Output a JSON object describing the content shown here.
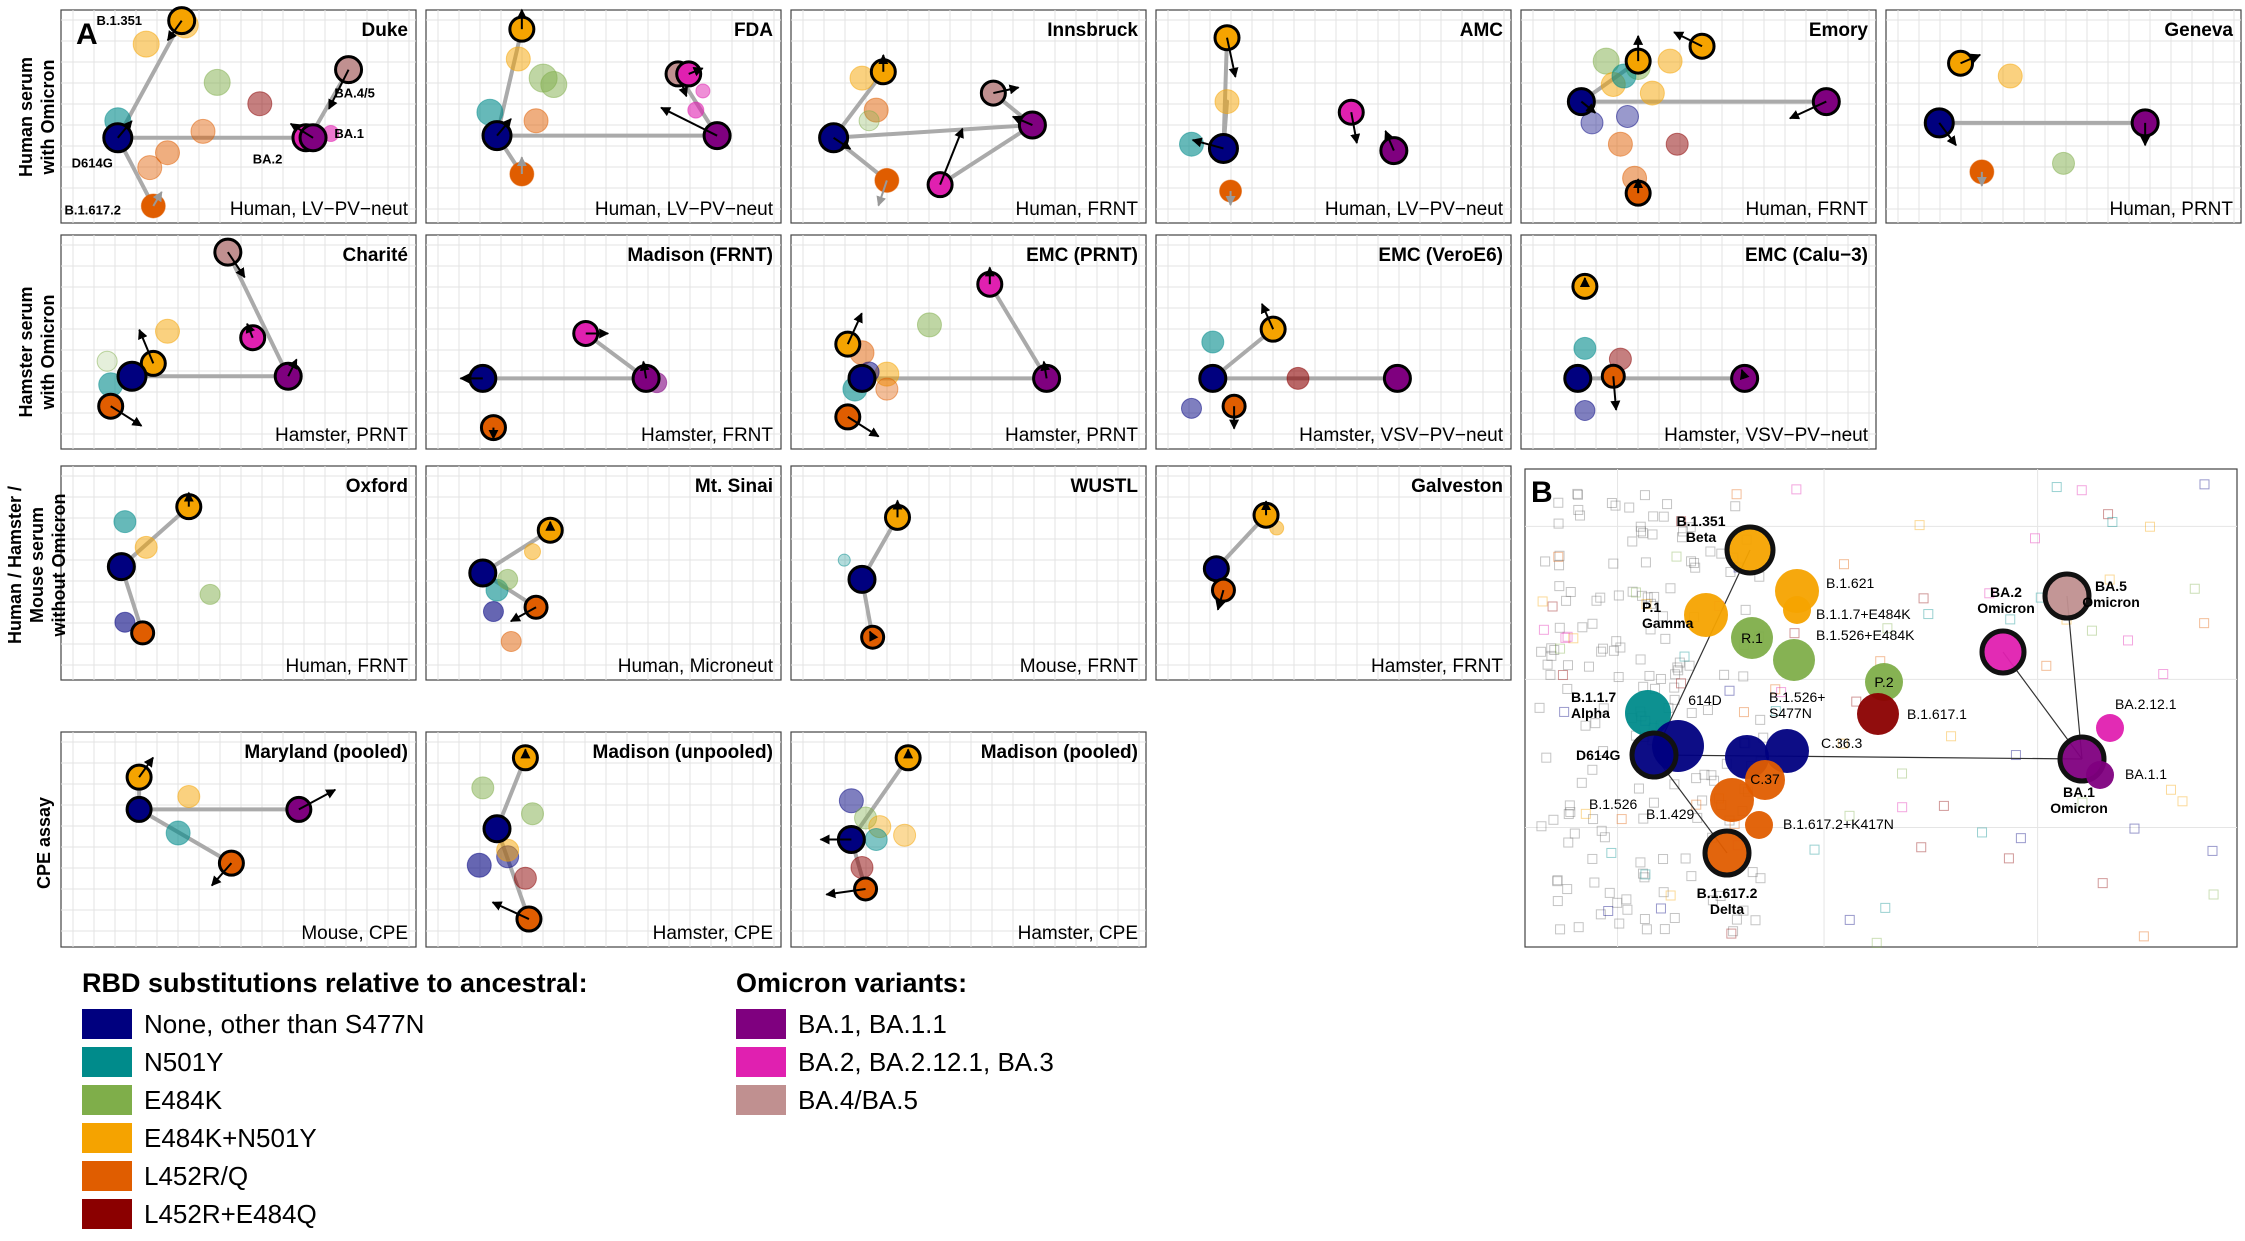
{
  "figure": {
    "panel_letter_a": "A",
    "panel_letter_b": "B",
    "row_labels": [
      "Human serum\nwith Omicron",
      "Hamster serum\nwith Omicron",
      "Human / Hamster /\nMouse serum\nwithout Omicron",
      "CPE assay"
    ]
  },
  "colors": {
    "none": "#00007f",
    "n501y": "#008b8b",
    "e484k": "#7fae4a",
    "e484k_n501y": "#f5a300",
    "l452rq": "#e05d00",
    "l452r_e484q": "#8b0000",
    "ba1": "#7f007f",
    "ba2": "#e020b0",
    "ba45": "#c09090"
  },
  "panels": [
    {
      "id": "duke",
      "title": "Duke",
      "subtitle": "Human, LV−PV−neut",
      "labels": {
        "b1351": "B.1.351",
        "ba45": "BA.4/5",
        "ba2": "BA.2",
        "ba1": "BA.1",
        "d614g": "D614G",
        "b16172": "B.1.617.2"
      }
    },
    {
      "id": "fda",
      "title": "FDA",
      "subtitle": "Human, LV−PV−neut"
    },
    {
      "id": "innsbruck",
      "title": "Innsbruck",
      "subtitle": "Human, FRNT"
    },
    {
      "id": "amc",
      "title": "AMC",
      "subtitle": "Human, LV−PV−neut"
    },
    {
      "id": "emory",
      "title": "Emory",
      "subtitle": "Human, FRNT"
    },
    {
      "id": "geneva",
      "title": "Geneva",
      "subtitle": "Human, PRNT"
    },
    {
      "id": "charite",
      "title": "Charité",
      "subtitle": "Hamster, PRNT"
    },
    {
      "id": "madison_frnt",
      "title": "Madison (FRNT)",
      "subtitle": "Hamster, FRNT"
    },
    {
      "id": "emc_prnt",
      "title": "EMC (PRNT)",
      "subtitle": "Hamster, PRNT"
    },
    {
      "id": "emc_veroe6",
      "title": "EMC (VeroE6)",
      "subtitle": "Hamster, VSV−PV−neut"
    },
    {
      "id": "emc_calu3",
      "title": "EMC (Calu−3)",
      "subtitle": "Hamster, VSV−PV−neut"
    },
    {
      "id": "oxford",
      "title": "Oxford",
      "subtitle": "Human, FRNT"
    },
    {
      "id": "mtsinai",
      "title": "Mt. Sinai",
      "subtitle": "Human, Microneut"
    },
    {
      "id": "wustl",
      "title": "WUSTL",
      "subtitle": "Mouse, FRNT"
    },
    {
      "id": "galveston",
      "title": "Galveston",
      "subtitle": "Hamster, FRNT"
    },
    {
      "id": "maryland",
      "title": "Maryland (pooled)",
      "subtitle": "Mouse, CPE"
    },
    {
      "id": "madison_unpooled",
      "title": "Madison (unpooled)",
      "subtitle": "Hamster, CPE"
    },
    {
      "id": "madison_pooled",
      "title": "Madison (pooled)",
      "subtitle": "Hamster, CPE"
    }
  ],
  "panel_b": {
    "labels": {
      "b1351": "B.1.351\nBeta",
      "p1": "P.1\nGamma",
      "b1621": "B.1.621",
      "b117e484k": "B.1.1.7+E484K",
      "r1": "R.1",
      "b1526e484k": "B.1.526+E484K",
      "p2": "P.2",
      "b16171": "B.1.617.1",
      "b117": "B.1.1.7\nAlpha",
      "d614": "614D",
      "b1526s477n": "B.1.526+\nS477N",
      "c363": "C.36.3",
      "d614g": "D614G",
      "c37": "C.37",
      "b1526": "B.1.526",
      "b1429": "B.1.429",
      "b16172k417n": "B.1.617.2+K417N",
      "b16172": "B.1.617.2\nDelta",
      "ba2": "BA.2\nOmicron",
      "ba5": "BA.5\nOmicron",
      "ba2121": "BA.2.12.1",
      "ba11": "BA.1.1",
      "ba1": "BA.1\nOmicron"
    }
  },
  "legend_rbd": {
    "title": "RBD substitutions relative to ancestral:",
    "items": [
      {
        "label": "None, other than S477N",
        "color": "#00007f"
      },
      {
        "label": "N501Y",
        "color": "#008b8b"
      },
      {
        "label": "E484K",
        "color": "#7fae4a"
      },
      {
        "label": "E484K+N501Y",
        "color": "#f5a300"
      },
      {
        "label": "L452R/Q",
        "color": "#e05d00"
      },
      {
        "label": "L452R+E484Q",
        "color": "#8b0000"
      }
    ]
  },
  "legend_omicron": {
    "title": "Omicron variants:",
    "items": [
      {
        "label": "BA.1, BA.1.1",
        "color": "#7f007f"
      },
      {
        "label": "BA.2, BA.2.12.1, BA.3",
        "color": "#e020b0"
      },
      {
        "label": "BA.4/BA.5",
        "color": "#c09090"
      }
    ]
  }
}
